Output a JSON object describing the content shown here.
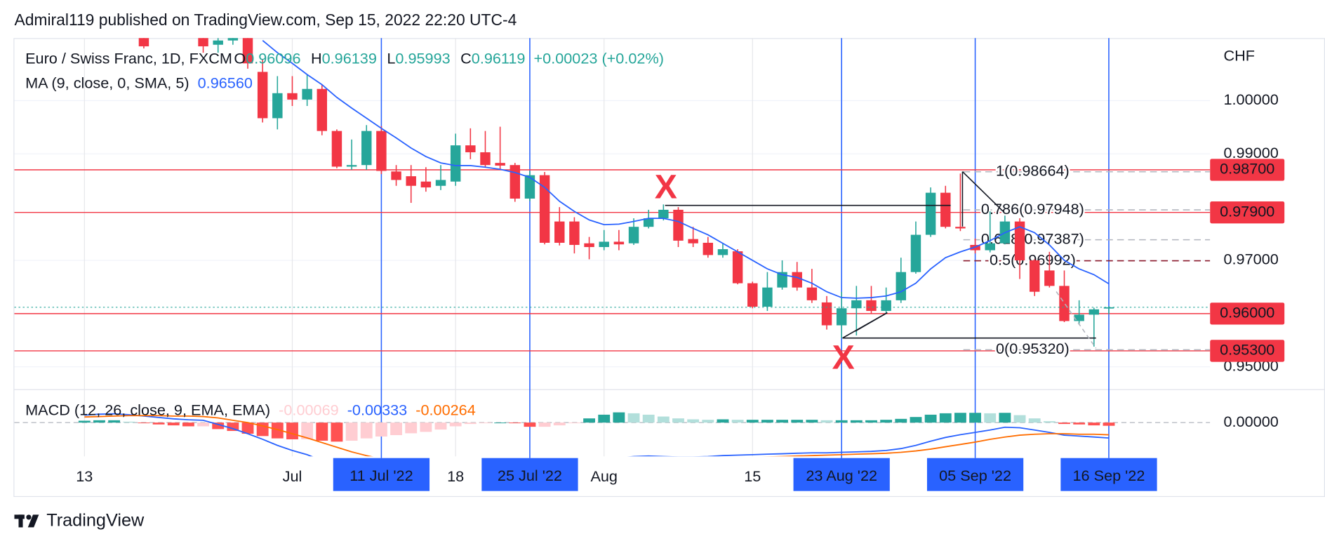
{
  "header": "Admiral119 published on TradingView.com, Sep 15, 2022 22:20 UTC-4",
  "footer_brand": "TradingView",
  "chart_data": {
    "type": "candlestick",
    "symbol": "Euro / Swiss Franc, 1D, FXCM",
    "ohlc_letters": [
      "O",
      "H",
      "L",
      "C"
    ],
    "change": "+0.00023 (+0.02%)",
    "currency": "CHF",
    "annotations": [
      "X",
      "X"
    ],
    "categories": [
      "13",
      null,
      null,
      null,
      null,
      null,
      null,
      null,
      null,
      null,
      null,
      null,
      null,
      null,
      "Jul",
      null,
      null,
      null,
      null,
      null,
      "11 Jul '22",
      null,
      null,
      null,
      null,
      "18",
      null,
      null,
      null,
      null,
      "25 Jul '22",
      null,
      null,
      null,
      null,
      "Aug",
      null,
      null,
      null,
      null,
      null,
      null,
      null,
      null,
      null,
      "15",
      null,
      null,
      null,
      null,
      null,
      "23 Aug '22",
      null,
      null,
      null,
      null,
      null,
      null,
      null,
      null,
      "05 Sep '22",
      null,
      null,
      null,
      null,
      null,
      null,
      null,
      null,
      "16 Sep '22"
    ],
    "highlighted": [
      20,
      30,
      51,
      60,
      69
    ],
    "highlight_color": "#2962ff",
    "xlim": [
      -4.72,
      75.82
    ],
    "ylim": [
      0.94588,
      1.01175
    ],
    "yticks": [
      {
        "value": 1,
        "label": "1.00000"
      },
      {
        "value": 0.99,
        "label": "0.99000"
      },
      {
        "value": 0.97,
        "label": "0.97000"
      },
      {
        "value": 0.95,
        "label": "0.95000"
      }
    ],
    "grid": true,
    "up_color": "#26a69a",
    "down_color": "#f23645",
    "candles": {
      "open": [
        null,
        null,
        null,
        null,
        1.0125,
        null,
        null,
        null,
        1.013,
        1.0105,
        1.0113,
        1.012,
        1.0054,
        0.9967,
        1.0014,
        1.0002,
        1.0022,
        0.9943,
        0.9876,
        0.9879,
        0.9943,
        0.9867,
        0.9858,
        0.9848,
        0.984,
        0.9848,
        0.9916,
        0.9903,
        0.9883,
        0.9879,
        0.9816,
        0.986,
        0.9773,
        0.9773,
        0.9732,
        0.9725,
        0.9735,
        0.9732,
        0.9763,
        0.9779,
        0.9795,
        0.974,
        0.9733,
        0.971,
        0.9717,
        0.9657,
        0.9613,
        0.9649,
        0.9678,
        0.9649,
        0.9621,
        0.9578,
        0.961,
        0.9625,
        0.9605,
        0.9625,
        0.9678,
        0.9748,
        0.9827,
        0.9763,
        0.9729,
        0.9719,
        0.9732,
        0.9773,
        0.97,
        0.9681,
        0.9652,
        0.9586,
        0.9598,
        0.96096
      ],
      "high": [
        null,
        null,
        null,
        null,
        1.0135,
        null,
        null,
        null,
        1.015,
        1.013,
        1.014,
        1.013,
        1.0078,
        1.0046,
        1.0046,
        1.0049,
        1.003,
        0.9946,
        0.9927,
        0.9954,
        0.9952,
        0.9879,
        0.9879,
        0.9875,
        0.9879,
        0.9938,
        0.9948,
        0.9943,
        0.9951,
        0.9883,
        0.9868,
        0.9866,
        0.98,
        0.9781,
        0.9744,
        0.9757,
        0.9757,
        0.9779,
        0.9795,
        0.9805,
        0.98,
        0.9763,
        0.9744,
        0.9732,
        0.9721,
        0.966,
        0.9678,
        0.97,
        0.9697,
        0.9684,
        0.9633,
        0.9641,
        0.9652,
        0.9652,
        0.9649,
        0.9705,
        0.9773,
        0.9837,
        0.984,
        0.9863,
        0.9741,
        0.9792,
        0.9784,
        0.9779,
        0.9702,
        0.9716,
        0.9681,
        0.9625,
        0.9611,
        0.96139
      ],
      "low": [
        null,
        null,
        null,
        null,
        1.0098,
        null,
        null,
        null,
        1.009,
        1.009,
        1.0105,
        1.006,
        0.9959,
        0.9946,
        0.999,
        0.999,
        0.9935,
        0.9873,
        0.987,
        0.987,
        0.9862,
        0.984,
        0.9808,
        0.9829,
        0.9832,
        0.984,
        0.989,
        0.9875,
        0.9872,
        0.981,
        0.9811,
        0.973,
        0.9728,
        0.9713,
        0.9702,
        0.9719,
        0.9719,
        0.9729,
        0.976,
        0.9775,
        0.9725,
        0.9725,
        0.9705,
        0.9705,
        0.9655,
        0.961,
        0.9605,
        0.9645,
        0.9643,
        0.962,
        0.957,
        0.9554,
        0.9559,
        0.96,
        0.96,
        0.962,
        0.9675,
        0.9744,
        0.976,
        0.9755,
        0.9713,
        0.9715,
        0.973,
        0.9665,
        0.9633,
        0.9649,
        0.9584,
        0.9579,
        0.9538,
        0.95993
      ],
      "close": [
        null,
        null,
        null,
        null,
        1.0102,
        null,
        null,
        null,
        1.0102,
        1.0113,
        1.0118,
        1.007,
        0.9967,
        1.0014,
        1.0002,
        1.0022,
        0.9943,
        0.9876,
        0.9879,
        0.9943,
        0.9868,
        0.9851,
        0.984,
        0.9837,
        0.9851,
        0.9916,
        0.9903,
        0.9879,
        0.9878,
        0.9816,
        0.986,
        0.9733,
        0.9733,
        0.9729,
        0.9725,
        0.9735,
        0.973,
        0.9763,
        0.9779,
        0.9795,
        0.9737,
        0.9732,
        0.971,
        0.9721,
        0.9657,
        0.9613,
        0.9649,
        0.9678,
        0.9649,
        0.9625,
        0.9578,
        0.961,
        0.9625,
        0.9605,
        0.9625,
        0.9678,
        0.9748,
        0.9827,
        0.9763,
        0.976,
        0.9719,
        0.9732,
        0.9773,
        0.97,
        0.9641,
        0.9652,
        0.9586,
        0.9598,
        0.9608,
        0.96119
      ]
    },
    "ma": {
      "name": "MA (9, close, 0, SMA, 5)",
      "color": "#2962ff",
      "legend_value": "0.96560",
      "values": [
        null,
        null,
        null,
        null,
        null,
        null,
        null,
        null,
        null,
        null,
        null,
        null,
        1.0113,
        1.009,
        1.007,
        1.0049,
        1.003,
        1.0006,
        0.9986,
        0.9967,
        0.9948,
        0.993,
        0.9911,
        0.9895,
        0.9883,
        0.9878,
        0.9878,
        0.9875,
        0.9871,
        0.9865,
        0.9856,
        0.9837,
        0.9811,
        0.9792,
        0.9776,
        0.9767,
        0.9768,
        0.9773,
        0.9779,
        0.9779,
        0.9773,
        0.976,
        0.9748,
        0.9732,
        0.9716,
        0.97,
        0.9684,
        0.9673,
        0.9668,
        0.9657,
        0.9641,
        0.963,
        0.9629,
        0.963,
        0.9633,
        0.9641,
        0.9657,
        0.9684,
        0.9705,
        0.9716,
        0.9725,
        0.9737,
        0.9752,
        0.9763,
        0.9752,
        0.9729,
        0.97,
        0.9684,
        0.9673,
        0.9656
      ]
    },
    "levels": [
      {
        "value": 0.987,
        "label": "0.98700"
      },
      {
        "value": 0.979,
        "label": "0.97900"
      },
      {
        "value": 0.96,
        "label": "0.96000"
      },
      {
        "value": 0.953,
        "label": "0.95300"
      }
    ],
    "level_color": "#f23645",
    "fib": [
      {
        "value": 0.98664,
        "label": "1(0.98664)",
        "color": "#b2b5be"
      },
      {
        "value": 0.97948,
        "label": "0.786(0.97948)",
        "color": "#b2b5be"
      },
      {
        "value": 0.97387,
        "label": "0.618(0.97387)",
        "color": "#b2b5be"
      },
      {
        "value": 0.96992,
        "label": "0.5(0.96992)",
        "color": "#8b1a2b"
      },
      {
        "value": 0.9532,
        "label": "0(0.95320)",
        "color": "#b2b5be"
      }
    ],
    "macd": {
      "name": "MACD (12, 26, close, 9, EMA, EMA)",
      "ylim": [
        -0.00727,
        0.00673
      ],
      "yticks": [
        {
          "value": 0,
          "label": "0.00000"
        }
      ],
      "macd_color": "#2962ff",
      "signal_color": "#ff6d00",
      "hist_colors": [
        "#26a69a",
        "#b2dfdb",
        "#ff5252",
        "#ffcdd2"
      ],
      "histogram": [
        0.0004,
        0.0005,
        0.0005,
        0.0002,
        -0.0001,
        -0.0004,
        -0.0006,
        -0.0008,
        -0.0008,
        -0.0014,
        -0.0018,
        -0.0024,
        -0.0029,
        -0.0034,
        -0.0036,
        -0.0036,
        -0.0039,
        -0.0041,
        -0.0039,
        -0.0034,
        -0.003,
        -0.0027,
        -0.0023,
        -0.002,
        -0.0015,
        -0.0008,
        -0.0003,
        -0.0001,
        0,
        -0.0001,
        -0.0009,
        -0.0009,
        -0.0006,
        -0.0001,
        0.0009,
        0.0017,
        0.0022,
        0.002,
        0.0017,
        0.0013,
        0.0009,
        0.0007,
        0.0006,
        0.0007,
        0.0006,
        0.0006,
        0.0006,
        0.0006,
        0.0006,
        0.0006,
        0.0005,
        0.0005,
        0.0005,
        0.0005,
        0.0006,
        0.0008,
        0.0012,
        0.0017,
        0.002,
        0.0021,
        0.0021,
        0.002,
        0.0021,
        0.0016,
        0.0009,
        0.0003,
        -0.0003,
        -0.0004,
        -0.0006,
        -0.00069
      ],
      "macd": [
        0.0016,
        0.0018,
        0.0019,
        0.0017,
        0.0014,
        0.0011,
        0.0008,
        0.0006,
        0.0005,
        -0.0004,
        -0.0013,
        -0.0024,
        -0.0036,
        -0.0049,
        -0.006,
        -0.0069,
        -0.0082,
        -0.0094,
        -0.0102,
        -0.0105,
        -0.0108,
        -0.0112,
        -0.0114,
        -0.0116,
        -0.0115,
        -0.011,
        -0.0106,
        -0.0104,
        -0.0103,
        -0.0104,
        -0.0114,
        -0.0116,
        -0.0115,
        -0.011,
        -0.0098,
        -0.0086,
        -0.0076,
        -0.0073,
        -0.0072,
        -0.0073,
        -0.0074,
        -0.0074,
        -0.0073,
        -0.0071,
        -0.007,
        -0.0069,
        -0.0068,
        -0.0067,
        -0.0066,
        -0.0065,
        -0.0065,
        -0.0064,
        -0.0063,
        -0.0062,
        -0.006,
        -0.0056,
        -0.0049,
        -0.004,
        -0.0032,
        -0.0026,
        -0.0021,
        -0.0016,
        -0.001,
        -0.0011,
        -0.0016,
        -0.0021,
        -0.0027,
        -0.0029,
        -0.0031,
        -0.00333
      ],
      "signal": [
        0.0012,
        0.0013,
        0.0014,
        0.0015,
        0.0015,
        0.0015,
        0.0014,
        0.0014,
        0.0013,
        0.001,
        0.0005,
        0,
        -0.0007,
        -0.0015,
        -0.0024,
        -0.0033,
        -0.0043,
        -0.0053,
        -0.0063,
        -0.0071,
        -0.0078,
        -0.0085,
        -0.0091,
        -0.0096,
        -0.01,
        -0.0102,
        -0.0103,
        -0.0103,
        -0.0103,
        -0.0103,
        -0.0105,
        -0.0107,
        -0.0109,
        -0.0109,
        -0.0107,
        -0.0103,
        -0.0098,
        -0.0093,
        -0.0089,
        -0.0086,
        -0.0083,
        -0.0081,
        -0.0079,
        -0.0078,
        -0.0076,
        -0.0075,
        -0.0074,
        -0.0073,
        -0.0072,
        -0.0071,
        -0.007,
        -0.0069,
        -0.0068,
        -0.0067,
        -0.0066,
        -0.0064,
        -0.0061,
        -0.0057,
        -0.0052,
        -0.0047,
        -0.0042,
        -0.0036,
        -0.0031,
        -0.0027,
        -0.0025,
        -0.0024,
        -0.0024,
        -0.0025,
        -0.0025,
        -0.00264
      ]
    }
  }
}
